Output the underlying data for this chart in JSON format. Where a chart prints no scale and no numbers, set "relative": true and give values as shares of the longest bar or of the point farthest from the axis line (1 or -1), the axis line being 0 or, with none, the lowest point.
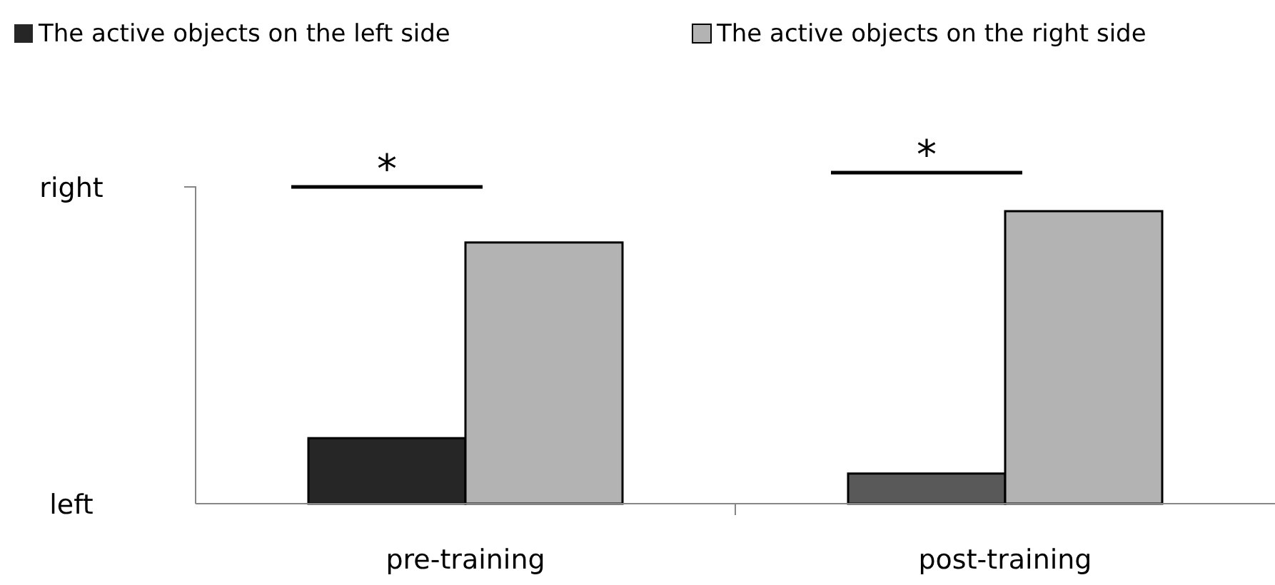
{
  "chart_data": {
    "type": "bar",
    "relative": true,
    "categories": [
      "pre-training",
      "post-training"
    ],
    "series": [
      {
        "name": "The active objects on the left side",
        "color": "#262626",
        "colors": [
          "#262626",
          "#595959"
        ],
        "values": [
          0.224,
          0.103
        ]
      },
      {
        "name": "The active objects on the right side",
        "color": "#b3b3b3",
        "values": [
          0.893,
          1
        ]
      }
    ],
    "annotations": [
      "left",
      "right",
      "*",
      "*"
    ],
    "legend": "top"
  }
}
